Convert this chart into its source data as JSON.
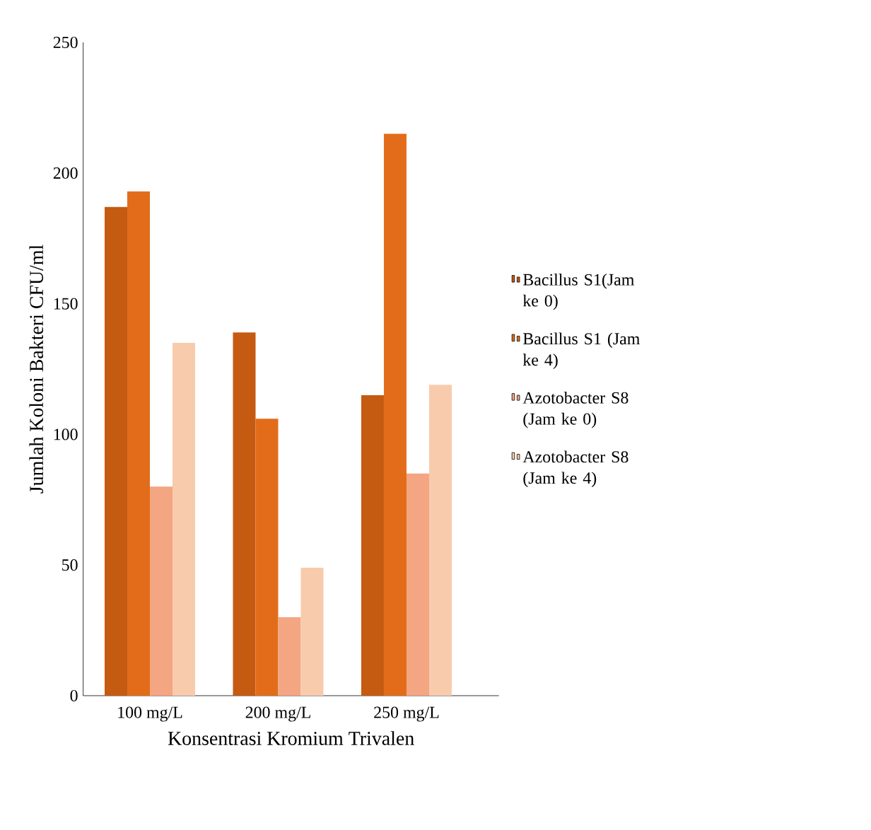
{
  "chart_data": {
    "type": "bar",
    "xlabel": "Konsentrasi Kromium Trivalen",
    "ylabel": "Jumlah Koloni Bakteri CFU/ml",
    "categories": [
      "100 mg/L",
      "200 mg/L",
      "250 mg/L"
    ],
    "series": [
      {
        "name": "Bacillus S1(Jam ke 0)",
        "color": "#c55a11",
        "values": [
          187,
          139,
          115
        ]
      },
      {
        "name": "Bacillus S1 (Jam ke 4)",
        "color": "#e36c1a",
        "values": [
          193,
          106,
          215
        ]
      },
      {
        "name": "Azotobacter S8 (Jam ke 0)",
        "color": "#f4a582",
        "values": [
          80,
          30,
          85
        ]
      },
      {
        "name": "Azotobacter S8 (Jam ke 4)",
        "color": "#f8cbad",
        "values": [
          135,
          49,
          119
        ]
      }
    ],
    "ylim": [
      0,
      250
    ],
    "yticks": [
      0,
      50,
      100,
      150,
      200,
      250
    ],
    "legend": "right"
  }
}
